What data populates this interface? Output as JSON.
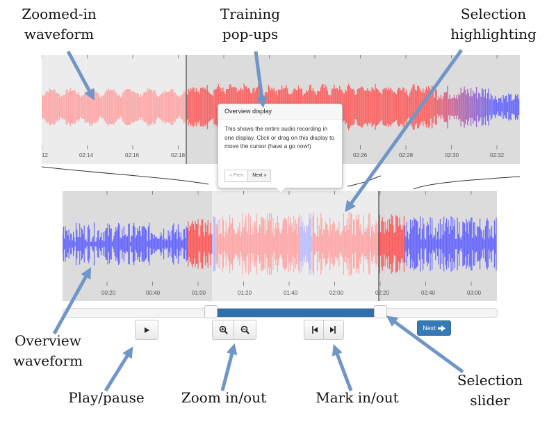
{
  "annotations": {
    "zoomed_waveform": [
      "Zoomed-in",
      "waveform"
    ],
    "training_popups": [
      "Training",
      "pop-ups"
    ],
    "selection_highlighting": [
      "Selection",
      "highlighting"
    ],
    "overview_waveform": [
      "Overview",
      "waveform"
    ],
    "play_pause": "Play/pause",
    "zoom_in_out": "Zoom in/out",
    "mark_in_out": "Mark in/out",
    "selection_slider": [
      "Selection",
      "slider"
    ]
  },
  "zoomed_view": {
    "time_labels": [
      "12",
      "02:14",
      "02:16",
      "02:18",
      "02:26",
      "02:28",
      "02:30",
      "02:32"
    ]
  },
  "overview": {
    "time_labels": [
      "00:20",
      "00:40",
      "01:00",
      "01:20",
      "01:40",
      "02:00",
      "02:20",
      "02:40",
      "03:00"
    ]
  },
  "popover": {
    "title": "Overview display",
    "body": "This shows the entire audio recording in one display. Click or drag on this display to move the cursor (have a go now!)",
    "prev_label": "« Prev",
    "next_label": "Next »"
  },
  "selection_slider": {
    "start_fraction": 0.34,
    "end_fraction": 0.73
  },
  "controls": {
    "next_label": "Next",
    "icons": {
      "play": "play-icon",
      "zoom_in": "zoom-in-icon",
      "zoom_out": "zoom-out-icon",
      "mark_in": "mark-in-icon",
      "mark_out": "mark-out-icon",
      "next_arrow": "arrow-right-icon"
    }
  },
  "colors": {
    "waveform_blue": "#5a5aff",
    "waveform_red": "#ff4d4d",
    "waveform_pink": "#ffa0a0",
    "selection_bg": "#ececec",
    "outside_bg": "#dcdcdc",
    "annotation_arrow": "#7096c8",
    "slider_fill": "#2f70ab",
    "accent_button": "#337ab7"
  }
}
